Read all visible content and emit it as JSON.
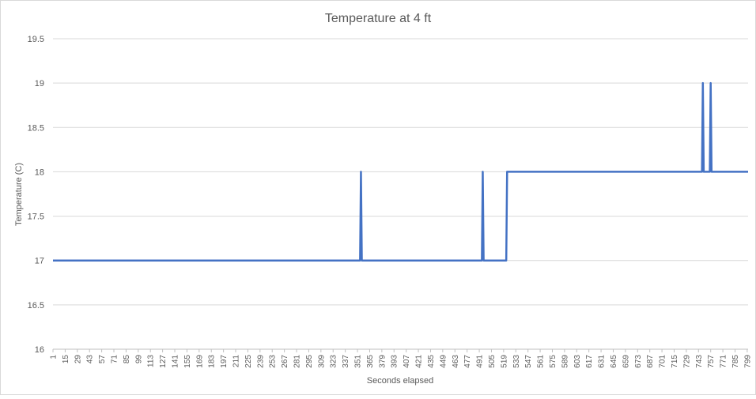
{
  "chart_data": {
    "type": "line",
    "title": "Temperature at 4 ft",
    "xlabel": "Seconds elapsed",
    "ylabel": "Temperature (C)",
    "ylim": [
      16,
      19.5
    ],
    "yticks": [
      "16",
      "16.5",
      "17",
      "17.5",
      "18",
      "18.5",
      "19",
      "19.5"
    ],
    "xticks": [
      "1",
      "15",
      "29",
      "43",
      "57",
      "71",
      "85",
      "99",
      "113",
      "127",
      "141",
      "155",
      "169",
      "183",
      "197",
      "211",
      "225",
      "239",
      "253",
      "267",
      "281",
      "295",
      "309",
      "323",
      "337",
      "351",
      "365",
      "379",
      "393",
      "407",
      "421",
      "435",
      "449",
      "463",
      "477",
      "491",
      "505",
      "519",
      "533",
      "547",
      "561",
      "575",
      "589",
      "603",
      "617",
      "631",
      "645",
      "659",
      "673",
      "687",
      "701",
      "715",
      "729",
      "743",
      "757",
      "771",
      "785",
      "799"
    ],
    "xlim": [
      1,
      800
    ],
    "grid": true,
    "color": "#4472c4",
    "series": [
      {
        "points": [
          [
            1,
            17
          ],
          [
            354,
            17
          ],
          [
            355,
            18
          ],
          [
            356,
            17
          ],
          [
            494,
            17
          ],
          [
            495,
            18
          ],
          [
            496,
            17
          ],
          [
            522,
            17
          ],
          [
            523,
            18
          ],
          [
            747,
            18
          ],
          [
            748,
            19
          ],
          [
            749,
            18
          ],
          [
            756,
            18
          ],
          [
            757,
            19
          ],
          [
            758,
            18
          ],
          [
            800,
            18
          ]
        ]
      }
    ]
  }
}
